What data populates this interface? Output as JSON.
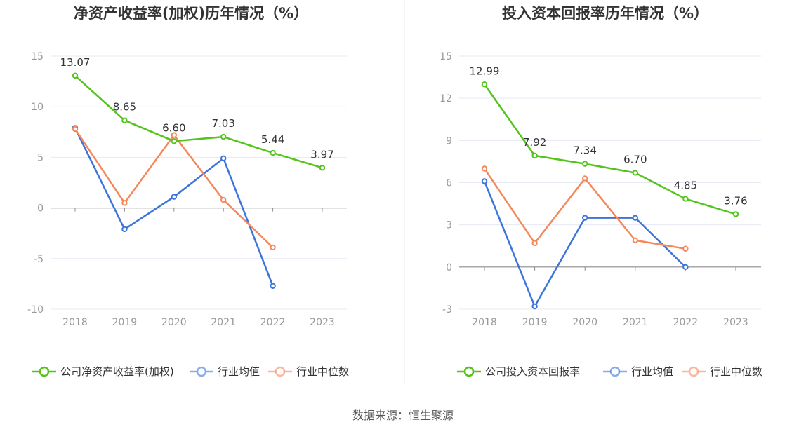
{
  "source": "数据来源：恒生聚源",
  "chart_data": [
    {
      "type": "line",
      "title": "净资产收益率(加权)历年情况（%）",
      "categories": [
        "2018",
        "2019",
        "2020",
        "2021",
        "2022",
        "2023"
      ],
      "ylim": [
        -10,
        15
      ],
      "yticks": [
        15,
        10,
        5,
        0,
        -5,
        -10
      ],
      "grid": true,
      "legend_position": "bottom",
      "series": [
        {
          "name": "公司净资产收益率(加权)",
          "color": "#52c41a",
          "values": [
            13.07,
            8.65,
            6.6,
            7.03,
            5.44,
            3.97
          ],
          "labels": [
            "13.07",
            "8.65",
            "6.60",
            "7.03",
            "5.44",
            "3.97"
          ]
        },
        {
          "name": "行业均值",
          "color": "#3b74dc",
          "values": [
            7.9,
            -2.1,
            1.1,
            4.9,
            -7.7,
            null
          ]
        },
        {
          "name": "行业中位数",
          "color": "#f5875a",
          "values": [
            7.8,
            0.5,
            7.2,
            0.8,
            -3.9,
            null
          ]
        }
      ]
    },
    {
      "type": "line",
      "title": "投入资本回报率历年情况（%）",
      "categories": [
        "2018",
        "2019",
        "2020",
        "2021",
        "2022",
        "2023"
      ],
      "ylim": [
        -3,
        15
      ],
      "yticks": [
        15,
        12,
        9,
        6,
        3,
        0,
        -3
      ],
      "grid": true,
      "legend_position": "bottom",
      "series": [
        {
          "name": "公司投入资本回报率",
          "color": "#52c41a",
          "values": [
            12.99,
            7.92,
            7.34,
            6.7,
            4.85,
            3.76
          ],
          "labels": [
            "12.99",
            "7.92",
            "7.34",
            "6.70",
            "4.85",
            "3.76"
          ]
        },
        {
          "name": "行业均值",
          "color": "#3b74dc",
          "values": [
            6.1,
            -2.8,
            3.5,
            3.5,
            0.0,
            null
          ]
        },
        {
          "name": "行业中位数",
          "color": "#f5875a",
          "values": [
            7.0,
            1.7,
            6.3,
            1.9,
            1.3,
            null
          ]
        }
      ]
    }
  ]
}
